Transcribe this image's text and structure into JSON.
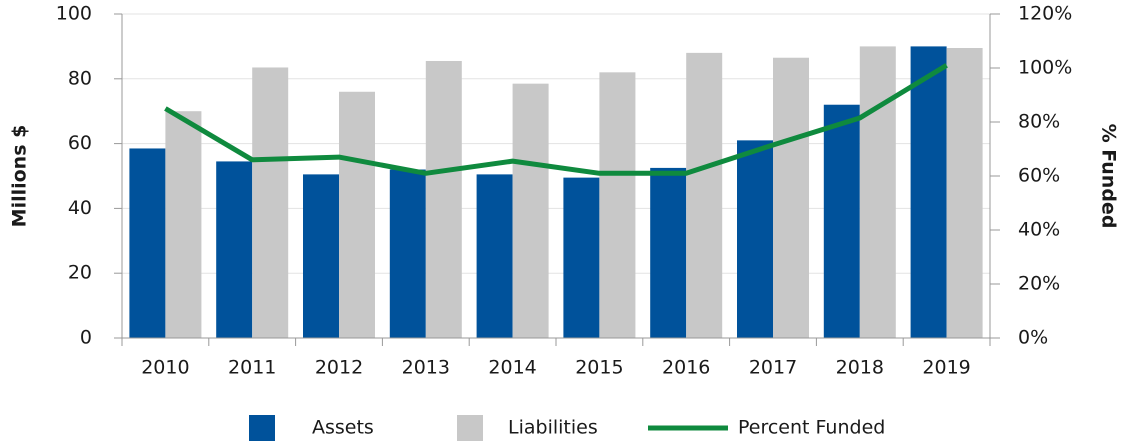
{
  "chart_data": {
    "type": "bar-line",
    "categories": [
      "2010",
      "2011",
      "2012",
      "2013",
      "2014",
      "2015",
      "2016",
      "2017",
      "2018",
      "2019"
    ],
    "series": [
      {
        "name": "Assets",
        "type": "bar",
        "color": "#00529b",
        "values": [
          58.5,
          54.5,
          50.5,
          52,
          50.5,
          49.5,
          52.5,
          61,
          72,
          90
        ]
      },
      {
        "name": "Liabilities",
        "type": "bar",
        "color": "#c8c8c8",
        "values": [
          70,
          83.5,
          76,
          85.5,
          78.5,
          82,
          88,
          86.5,
          90,
          89.5
        ]
      },
      {
        "name": "Percent Funded",
        "type": "line",
        "axis": "y2",
        "color": "#0f8a3e",
        "values": [
          85,
          66,
          67,
          61,
          65.5,
          61,
          61,
          71.5,
          81.5,
          101
        ]
      }
    ],
    "ylabel": "Millions $",
    "y2label": "% Funded",
    "ylim": [
      0,
      100
    ],
    "yticks": [
      0,
      20,
      40,
      60,
      80,
      100
    ],
    "y2lim": [
      0,
      120
    ],
    "y2ticks": [
      {
        "value": 0,
        "label": "0%"
      },
      {
        "value": 20,
        "label": "20%"
      },
      {
        "value": 40,
        "label": "40%"
      },
      {
        "value": 60,
        "label": "60%"
      },
      {
        "value": 80,
        "label": "80%"
      },
      {
        "value": 100,
        "label": "100%"
      },
      {
        "value": 120,
        "label": "120%"
      }
    ],
    "grid": true,
    "legend": "bottom"
  }
}
